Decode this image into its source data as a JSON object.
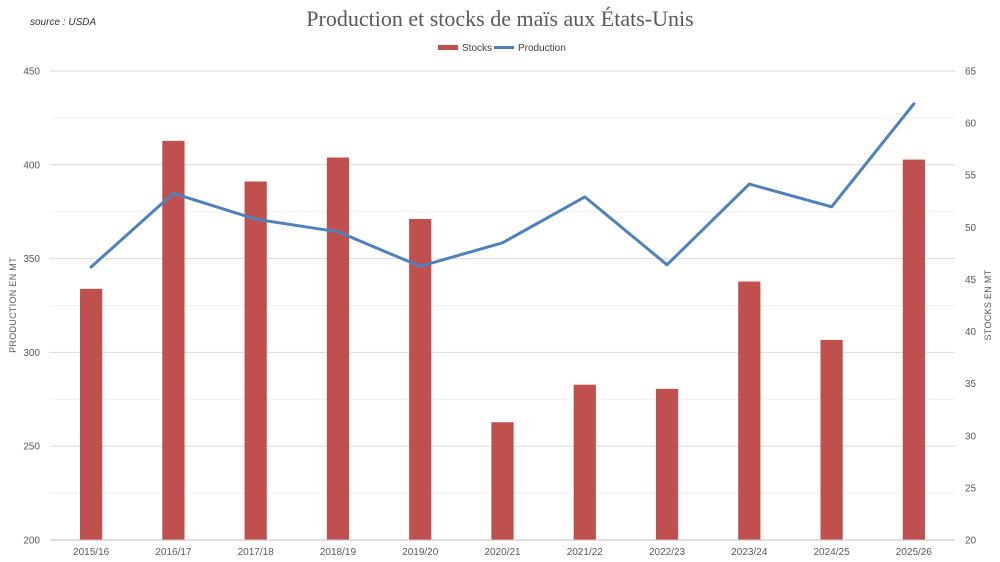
{
  "source_label": "source : USDA",
  "chart_data": {
    "type": "bar",
    "title": "Production et stocks de maïs aux États-Unis",
    "categories": [
      "2015/16",
      "2016/17",
      "2017/18",
      "2018/19",
      "2019/20",
      "2020/21",
      "2021/22",
      "2022/23",
      "2023/24",
      "2024/25",
      "2025/26"
    ],
    "series": [
      {
        "name": "Stocks",
        "chart_type": "bar",
        "axis": "right",
        "color": "#c0504d",
        "values": [
          44.1,
          58.3,
          54.4,
          56.7,
          50.8,
          31.3,
          34.9,
          34.5,
          44.8,
          39.2,
          56.5
        ]
      },
      {
        "name": "Production",
        "chart_type": "line",
        "axis": "left",
        "color": "#4f81bd",
        "values": [
          345.5,
          384.8,
          371.0,
          364.3,
          345.9,
          358.4,
          382.9,
          346.7,
          389.7,
          377.6,
          432.5
        ]
      }
    ],
    "y_left": {
      "label": "PRODUCTION EN MT",
      "min": 200,
      "max": 450,
      "ticks": [
        200,
        250,
        300,
        350,
        400,
        450
      ]
    },
    "y_right": {
      "label": "STOCKS EN MT",
      "min": 20,
      "max": 65,
      "ticks": [
        20,
        25,
        30,
        35,
        40,
        45,
        50,
        55,
        60,
        65
      ]
    },
    "grid": true,
    "legend_position": "top-center"
  }
}
